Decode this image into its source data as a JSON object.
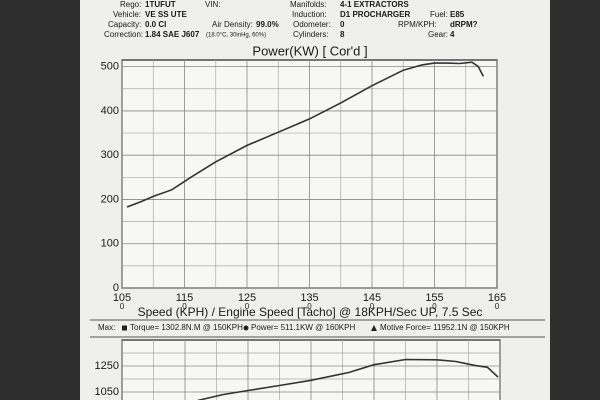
{
  "header": {
    "rego": {
      "label": "Rego:",
      "value": "1TUFUT"
    },
    "vin": {
      "label": "VIN:"
    },
    "manifolds": {
      "label": "Manifolds:",
      "value": "4-1 EXTRACTORS"
    },
    "vehicle": {
      "label": "Vehicle:",
      "value": "VE SS UTE"
    },
    "induction": {
      "label": "Induction:",
      "value": "D1 PROCHARGER"
    },
    "fuel": {
      "label": "Fuel:",
      "value": "E85"
    },
    "capacity": {
      "label": "Capacity:",
      "value": "0.0 CI"
    },
    "air_density": {
      "label": "Air Density:",
      "value": "99.0%"
    },
    "odometer": {
      "label": "Odometer:",
      "value": "0"
    },
    "rpm_kph": {
      "label": "RPM/KPH:",
      "value": "dRPM?"
    },
    "correction": {
      "label": "Correction:",
      "value": "1.84 SAE J607"
    },
    "conditions": "(18.0°C, 30inHg, 60%)",
    "cylinders": {
      "label": "Cylinders:",
      "value": "8"
    },
    "gear": {
      "label": "Gear:",
      "value": "4"
    }
  },
  "max": {
    "label": "Max:",
    "torque": "Torque= 1302.8N.M @ 150KPH",
    "power": "Power= 511.1KW @ 160KPH",
    "force": "Motive Force= 11952.1N @ 150KPH"
  },
  "chart_data": [
    {
      "type": "line",
      "title": "Power(KW)     [ Cor'd ]",
      "x_label": "Speed (KPH) / Engine Speed [Tacho] @ 18KPH/Sec UP, 7.5 Sec",
      "x": [
        105.8,
        108,
        110,
        113,
        116,
        120,
        125,
        130,
        135,
        140,
        145,
        150,
        153,
        155,
        157,
        159,
        161,
        162,
        162.8
      ],
      "series": [
        {
          "name": "Power",
          "color": "#333333",
          "values": [
            183,
            195,
            207,
            222,
            250,
            285,
            322,
            352,
            382,
            418,
            457,
            492,
            504,
            508,
            508,
            507,
            510,
            500,
            478
          ]
        }
      ],
      "xlim": [
        105,
        165
      ],
      "xticks": [
        105,
        115,
        125,
        135,
        145,
        155,
        165
      ],
      "xminor": [
        110,
        120,
        130,
        140,
        150,
        160
      ],
      "x2ticklabels": [
        "0",
        "0",
        "0",
        "0",
        "0",
        "0",
        "0"
      ],
      "ylim": [
        0,
        515
      ],
      "yticks": [
        0,
        100,
        200,
        300,
        400,
        500
      ],
      "yminor": [
        50,
        150,
        250,
        350,
        450
      ],
      "grid": true
    },
    {
      "type": "line",
      "x": [
        117,
        121,
        125,
        130,
        135,
        141,
        145,
        150,
        155,
        158,
        161,
        163,
        164.7
      ],
      "series": [
        {
          "name": "Torque",
          "color": "#333333",
          "values": [
            985,
            1030,
            1062,
            1100,
            1140,
            1200,
            1260,
            1300,
            1298,
            1285,
            1255,
            1240,
            1165
          ]
        }
      ],
      "xlim": [
        105,
        165
      ],
      "xticks": [
        105,
        115,
        125,
        135,
        145,
        155,
        165
      ],
      "xminor": [
        110,
        120,
        130,
        140,
        150,
        160
      ],
      "ylim": [
        835,
        1450
      ],
      "yticks": [
        1050,
        1250
      ],
      "yminor": [
        1150,
        1350
      ],
      "grid": true
    }
  ]
}
